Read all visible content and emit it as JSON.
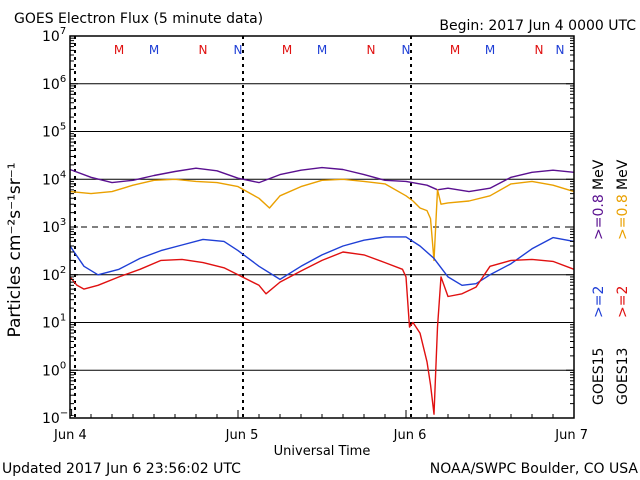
{
  "header": {
    "title": "GOES Electron Flux (5 minute data)",
    "begin": "Begin: 2017 Jun 4 0000 UTC"
  },
  "footer": {
    "updated": "Updated 2017 Jun  6 23:56:02 UTC",
    "credit": "NOAA/SWPC Boulder, CO USA"
  },
  "colors": {
    "goes15_ge2": "#1f3fd6",
    "goes13_ge2": "#e01010",
    "goes15_ge08": "#5a1090",
    "goes13_ge08": "#eaa000",
    "midnight_marker": "#e01010",
    "noon_marker": "#1f3fd6"
  },
  "chart_data": {
    "type": "line",
    "title": "GOES Electron Flux (5 minute data)",
    "xlabel": "Universal Time",
    "ylabel": "Particles cm⁻²s⁻¹sr⁻¹",
    "yscale": "log",
    "ylim": [
      0.1,
      10000000
    ],
    "xlim": [
      "2017-06-04 00:00",
      "2017-06-07 00:00"
    ],
    "x_tick_labels": [
      "Jun 4",
      "Jun 5",
      "Jun 6",
      "Jun 7"
    ],
    "y_ticks": [
      {
        "base": "10",
        "exp": "-1"
      },
      {
        "base": "10",
        "exp": "0"
      },
      {
        "base": "10",
        "exp": "1"
      },
      {
        "base": "10",
        "exp": "2"
      },
      {
        "base": "10",
        "exp": "3"
      },
      {
        "base": "10",
        "exp": "4"
      },
      {
        "base": "10",
        "exp": "5"
      },
      {
        "base": "10",
        "exp": "6"
      },
      {
        "base": "10",
        "exp": "7"
      }
    ],
    "right_labels": [
      {
        "sat": "GOES13",
        "energy": ">=2",
        "color": "#e01010"
      },
      {
        "sat": "GOES13",
        "energy": ">=0.8",
        "color": "#eaa000"
      },
      {
        "sat": "GOES15",
        "energy": ">=2",
        "color": "#1f3fd6"
      },
      {
        "sat": "GOES15",
        "energy": ">=0.8",
        "color": "#5a1090"
      }
    ],
    "unit_label": "MeV",
    "threshold_line": 1000,
    "grid": true,
    "markers": [
      {
        "label": "M",
        "x": "2017-06-04 07:00",
        "color": "#e01010"
      },
      {
        "label": "M",
        "x": "2017-06-04 12:00",
        "color": "#1f3fd6"
      },
      {
        "label": "N",
        "x": "2017-06-04 19:00",
        "color": "#e01010"
      },
      {
        "label": "N",
        "x": "2017-06-05 00:00",
        "color": "#1f3fd6"
      },
      {
        "label": "M",
        "x": "2017-06-05 07:00",
        "color": "#e01010"
      },
      {
        "label": "M",
        "x": "2017-06-05 12:00",
        "color": "#1f3fd6"
      },
      {
        "label": "N",
        "x": "2017-06-05 19:00",
        "color": "#e01010"
      },
      {
        "label": "N",
        "x": "2017-06-06 00:00",
        "color": "#1f3fd6"
      },
      {
        "label": "M",
        "x": "2017-06-06 07:00",
        "color": "#e01010"
      },
      {
        "label": "M",
        "x": "2017-06-06 12:00",
        "color": "#1f3fd6"
      },
      {
        "label": "N",
        "x": "2017-06-06 19:00",
        "color": "#e01010"
      },
      {
        "label": "N",
        "x": "2017-06-07 00:00",
        "color": "#1f3fd6"
      }
    ],
    "dashed_markers_x": [
      "2017-06-04 00:00",
      "2017-06-05 00:00",
      "2017-06-06 00:00"
    ],
    "series": [
      {
        "name": "GOES15 >=0.8 MeV",
        "color": "#5a1090",
        "x": [
          "2017-06-04 00:00",
          "2017-06-04 03:00",
          "2017-06-04 06:00",
          "2017-06-04 09:00",
          "2017-06-04 12:00",
          "2017-06-04 15:00",
          "2017-06-04 18:00",
          "2017-06-04 21:00",
          "2017-06-05 00:00",
          "2017-06-05 03:00",
          "2017-06-05 06:00",
          "2017-06-05 09:00",
          "2017-06-05 12:00",
          "2017-06-05 15:00",
          "2017-06-05 18:00",
          "2017-06-05 21:00",
          "2017-06-06 00:00",
          "2017-06-06 03:00",
          "2017-06-06 04:30",
          "2017-06-06 06:00",
          "2017-06-06 09:00",
          "2017-06-06 12:00",
          "2017-06-06 15:00",
          "2017-06-06 18:00",
          "2017-06-06 21:00",
          "2017-06-07 00:00"
        ],
        "y": [
          16000,
          11000,
          8500,
          9500,
          12000,
          14500,
          17000,
          15000,
          10500,
          8500,
          12500,
          15500,
          17500,
          16000,
          12500,
          9500,
          9000,
          7500,
          6000,
          6500,
          5500,
          6500,
          11000,
          14000,
          15500,
          14000
        ]
      },
      {
        "name": "GOES13 >=0.8 MeV",
        "color": "#eaa000",
        "x": [
          "2017-06-04 00:00",
          "2017-06-04 03:00",
          "2017-06-04 06:00",
          "2017-06-04 09:00",
          "2017-06-04 12:00",
          "2017-06-04 15:00",
          "2017-06-04 18:00",
          "2017-06-04 21:00",
          "2017-06-05 00:00",
          "2017-06-05 03:00",
          "2017-06-05 04:30",
          "2017-06-05 06:00",
          "2017-06-05 09:00",
          "2017-06-05 12:00",
          "2017-06-05 15:00",
          "2017-06-05 18:00",
          "2017-06-05 21:00",
          "2017-06-06 00:00",
          "2017-06-06 01:00",
          "2017-06-06 02:00",
          "2017-06-06 03:00",
          "2017-06-06 03:30",
          "2017-06-06 04:00",
          "2017-06-06 04:30",
          "2017-06-06 05:00",
          "2017-06-06 06:00",
          "2017-06-06 09:00",
          "2017-06-06 12:00",
          "2017-06-06 15:00",
          "2017-06-06 18:00",
          "2017-06-06 21:00",
          "2017-06-07 00:00"
        ],
        "y": [
          5500,
          5000,
          5500,
          7500,
          9500,
          10000,
          9000,
          8500,
          7000,
          4000,
          2500,
          4500,
          7000,
          9500,
          10000,
          9000,
          8000,
          4500,
          3500,
          2500,
          2200,
          1500,
          200,
          6000,
          3000,
          3200,
          3500,
          4500,
          8000,
          9000,
          7500,
          5500
        ]
      },
      {
        "name": "GOES15 >=2 MeV",
        "color": "#1f3fd6",
        "x": [
          "2017-06-04 00:00",
          "2017-06-04 02:00",
          "2017-06-04 04:00",
          "2017-06-04 07:00",
          "2017-06-04 10:00",
          "2017-06-04 13:00",
          "2017-06-04 16:00",
          "2017-06-04 19:00",
          "2017-06-04 22:00",
          "2017-06-05 00:00",
          "2017-06-05 03:00",
          "2017-06-05 06:00",
          "2017-06-05 09:00",
          "2017-06-05 12:00",
          "2017-06-05 15:00",
          "2017-06-05 18:00",
          "2017-06-05 21:00",
          "2017-06-06 00:00",
          "2017-06-06 02:00",
          "2017-06-06 04:00",
          "2017-06-06 06:00",
          "2017-06-06 08:00",
          "2017-06-06 10:00",
          "2017-06-06 12:00",
          "2017-06-06 15:00",
          "2017-06-06 18:00",
          "2017-06-06 21:00",
          "2017-06-07 00:00"
        ],
        "y": [
          400,
          150,
          100,
          130,
          220,
          320,
          420,
          550,
          500,
          320,
          150,
          80,
          150,
          260,
          400,
          530,
          620,
          620,
          400,
          220,
          90,
          60,
          65,
          100,
          170,
          350,
          600,
          500
        ]
      },
      {
        "name": "GOES13 >=2 MeV",
        "color": "#e01010",
        "x": [
          "2017-06-04 00:00",
          "2017-06-04 01:00",
          "2017-06-04 02:00",
          "2017-06-04 04:00",
          "2017-06-04 07:00",
          "2017-06-04 10:00",
          "2017-06-04 13:00",
          "2017-06-04 16:00",
          "2017-06-04 19:00",
          "2017-06-04 22:00",
          "2017-06-05 00:00",
          "2017-06-05 03:00",
          "2017-06-05 04:00",
          "2017-06-05 06:00",
          "2017-06-05 09:00",
          "2017-06-05 12:00",
          "2017-06-05 15:00",
          "2017-06-05 18:00",
          "2017-06-05 21:00",
          "2017-06-05 23:30",
          "2017-06-06 00:00",
          "2017-06-06 00:30",
          "2017-06-06 01:00",
          "2017-06-06 02:00",
          "2017-06-06 03:00",
          "2017-06-06 03:30",
          "2017-06-06 04:00",
          "2017-06-06 04:30",
          "2017-06-06 05:00",
          "2017-06-06 06:00",
          "2017-06-06 08:00",
          "2017-06-06 10:00",
          "2017-06-06 12:00",
          "2017-06-06 15:00",
          "2017-06-06 18:00",
          "2017-06-06 21:00",
          "2017-06-07 00:00"
        ],
        "y": [
          90,
          60,
          50,
          60,
          90,
          130,
          200,
          210,
          180,
          140,
          100,
          60,
          40,
          70,
          120,
          200,
          300,
          260,
          180,
          130,
          90,
          8,
          10,
          6,
          1.5,
          0.5,
          0.12,
          8,
          90,
          35,
          40,
          55,
          150,
          200,
          210,
          190,
          130
        ]
      }
    ]
  }
}
